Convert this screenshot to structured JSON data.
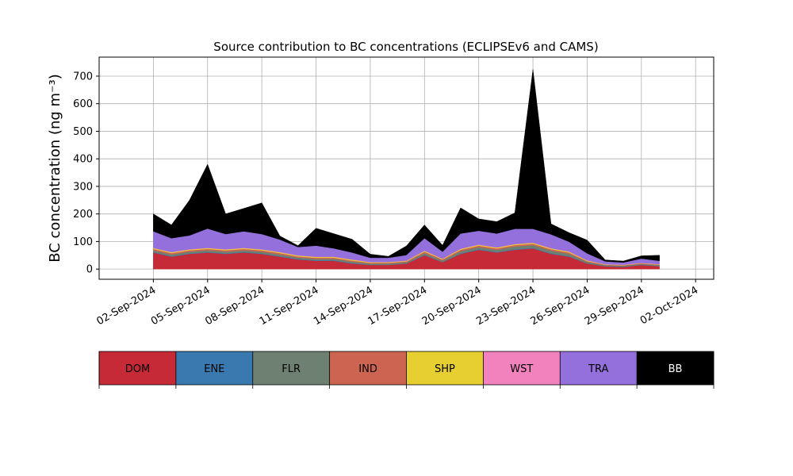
{
  "chart_data": {
    "type": "stacked_area",
    "title": "Source contribution to BC concentrations (ECLIPSEv6 and CAMS)",
    "y_label": "BC concentration (ng m⁻³)",
    "x": [
      "2024-09-02",
      "2024-09-03",
      "2024-09-04",
      "2024-09-05",
      "2024-09-06",
      "2024-09-07",
      "2024-09-08",
      "2024-09-09",
      "2024-09-10",
      "2024-09-11",
      "2024-09-12",
      "2024-09-13",
      "2024-09-14",
      "2024-09-15",
      "2024-09-16",
      "2024-09-17",
      "2024-09-18",
      "2024-09-19",
      "2024-09-20",
      "2024-09-21",
      "2024-09-22",
      "2024-09-23",
      "2024-09-24",
      "2024-09-25",
      "2024-09-26",
      "2024-09-27",
      "2024-09-28",
      "2024-09-29",
      "2024-09-30"
    ],
    "series": [
      {
        "name": "DOM",
        "color": "#c62a36",
        "values": [
          60,
          45,
          55,
          60,
          55,
          60,
          55,
          45,
          35,
          30,
          30,
          20,
          15,
          15,
          20,
          50,
          25,
          55,
          70,
          60,
          70,
          75,
          55,
          45,
          20,
          10,
          8,
          15,
          10
        ]
      },
      {
        "name": "ENE",
        "color": "#3a79b0",
        "values": [
          2,
          2,
          2,
          2,
          2,
          2,
          2,
          2,
          2,
          2,
          2,
          2,
          1,
          1,
          1,
          2,
          1,
          2,
          2,
          2,
          2,
          2,
          2,
          2,
          1,
          1,
          1,
          1,
          1
        ]
      },
      {
        "name": "FLR",
        "color": "#6e8070",
        "values": [
          6,
          6,
          6,
          6,
          6,
          6,
          6,
          6,
          5,
          5,
          5,
          5,
          4,
          4,
          4,
          6,
          5,
          8,
          8,
          8,
          10,
          10,
          10,
          8,
          5,
          3,
          3,
          3,
          3
        ]
      },
      {
        "name": "IND",
        "color": "#cd6452",
        "values": [
          5,
          5,
          5,
          5,
          5,
          5,
          5,
          5,
          4,
          4,
          4,
          4,
          3,
          3,
          3,
          5,
          4,
          5,
          5,
          5,
          5,
          5,
          5,
          5,
          3,
          2,
          2,
          2,
          2
        ]
      },
      {
        "name": "SHP",
        "color": "#e7cf31",
        "values": [
          3,
          3,
          3,
          3,
          3,
          3,
          3,
          3,
          3,
          3,
          3,
          3,
          2,
          2,
          2,
          3,
          2,
          3,
          3,
          3,
          3,
          3,
          3,
          3,
          2,
          1,
          1,
          1,
          1
        ]
      },
      {
        "name": "WST",
        "color": "#f282bd",
        "values": [
          1,
          1,
          1,
          1,
          1,
          1,
          1,
          1,
          1,
          1,
          1,
          1,
          1,
          1,
          1,
          1,
          1,
          1,
          1,
          1,
          1,
          1,
          1,
          1,
          1,
          1,
          1,
          1,
          1
        ]
      },
      {
        "name": "TRA",
        "color": "#9370db",
        "values": [
          60,
          50,
          50,
          70,
          55,
          60,
          55,
          45,
          30,
          40,
          30,
          25,
          15,
          15,
          20,
          45,
          25,
          55,
          50,
          50,
          55,
          50,
          50,
          35,
          25,
          10,
          8,
          15,
          12
        ]
      },
      {
        "name": "BB",
        "color": "#000000",
        "values": [
          63,
          48,
          128,
          233,
          73,
          83,
          113,
          13,
          5,
          63,
          53,
          48,
          13,
          5,
          33,
          48,
          23,
          93,
          43,
          43,
          58,
          578,
          38,
          33,
          48,
          5,
          5,
          10,
          20
        ]
      }
    ],
    "xlim": [
      "2024-08-30",
      "2024-10-03"
    ],
    "xticks": [
      {
        "value": "2024-09-02",
        "label": "02-Sep-2024"
      },
      {
        "value": "2024-09-05",
        "label": "05-Sep-2024"
      },
      {
        "value": "2024-09-08",
        "label": "08-Sep-2024"
      },
      {
        "value": "2024-09-11",
        "label": "11-Sep-2024"
      },
      {
        "value": "2024-09-14",
        "label": "14-Sep-2024"
      },
      {
        "value": "2024-09-17",
        "label": "17-Sep-2024"
      },
      {
        "value": "2024-09-20",
        "label": "20-Sep-2024"
      },
      {
        "value": "2024-09-23",
        "label": "23-Sep-2024"
      },
      {
        "value": "2024-09-26",
        "label": "26-Sep-2024"
      },
      {
        "value": "2024-09-29",
        "label": "29-Sep-2024"
      },
      {
        "value": "2024-10-02",
        "label": "02-Oct-2024"
      }
    ],
    "ylim": [
      -37,
      769
    ],
    "yticks": [
      0,
      100,
      200,
      300,
      400,
      500,
      600,
      700
    ],
    "grid": true
  }
}
